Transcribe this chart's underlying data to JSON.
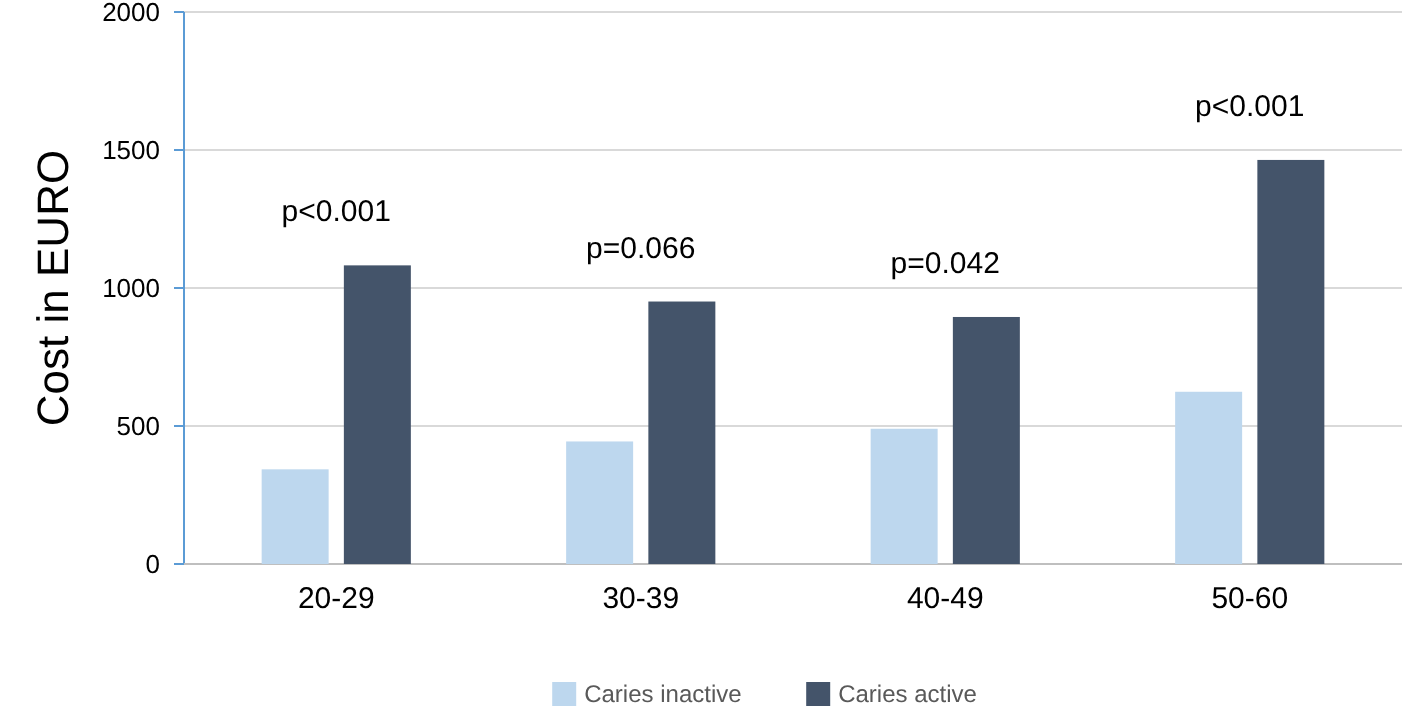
{
  "chart_data": {
    "type": "bar",
    "ylabel": "Cost in EURO",
    "categories": [
      "20-29",
      "30-39",
      "40-49",
      "50-60"
    ],
    "series": [
      {
        "name": "Caries inactive",
        "color": "#bdd7ee",
        "values": [
          343,
          444,
          490,
          624
        ]
      },
      {
        "name": "Caries active",
        "color": "#44546a",
        "values": [
          1082,
          951,
          895,
          1464
        ]
      }
    ],
    "ylim": [
      0,
      2000
    ],
    "yticks": [
      0,
      500,
      1000,
      1500,
      2000
    ],
    "grid": "y",
    "legend": "bottom",
    "annotations": [
      "p<0.001",
      "p=0.066",
      "p=0.042",
      "p<0.001"
    ]
  }
}
